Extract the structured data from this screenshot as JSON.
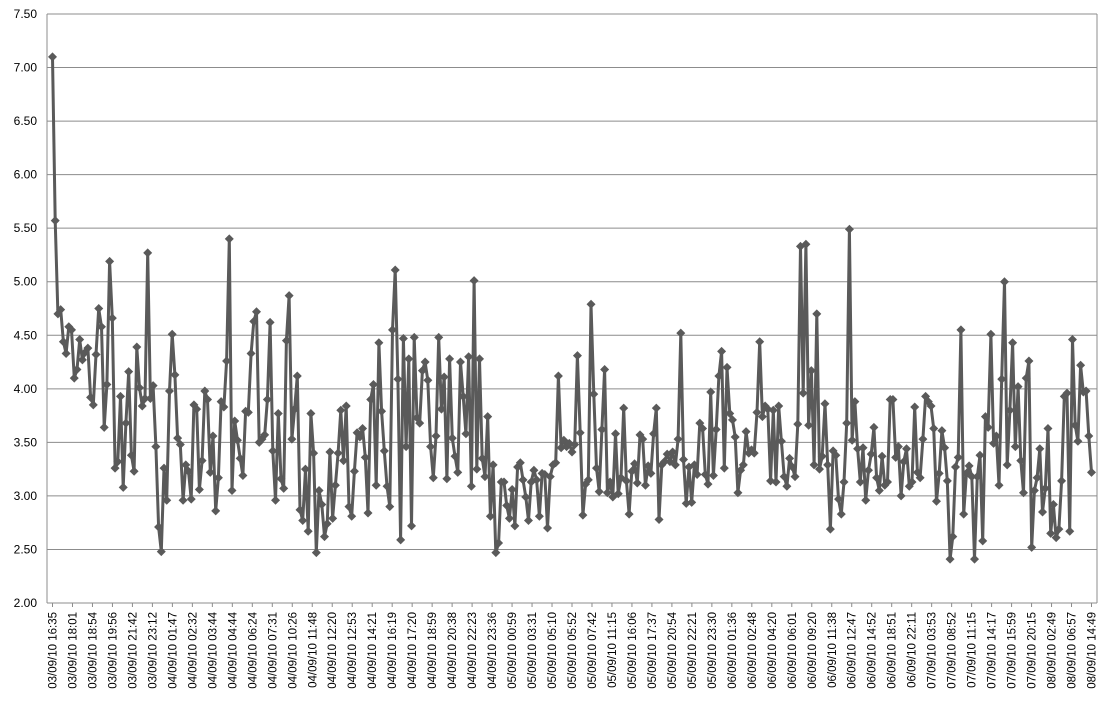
{
  "chart_data": {
    "type": "line",
    "title": "",
    "xlabel": "",
    "ylabel": "",
    "ylim": [
      2.0,
      7.5
    ],
    "y_ticks": [
      "2.00",
      "2.50",
      "3.00",
      "3.50",
      "4.00",
      "4.50",
      "5.00",
      "5.50",
      "6.00",
      "6.50",
      "7.00",
      "7.50"
    ],
    "grid": "horizontal",
    "legend": "none",
    "marker": "diamond",
    "series_color": "#5a5a5a",
    "gridline_color": "#8c8c8c",
    "x_tick_labels": [
      "03/09/10  16:35",
      "03/09/10  18:01",
      "03/09/10  18:54",
      "03/09/10  19:56",
      "03/09/10  21:42",
      "03/09/10  23:12",
      "04/09/10  01:47",
      "04/09/10  02:32",
      "04/09/10  03:44",
      "04/09/10  04:44",
      "04/09/10  06:24",
      "04/09/10  07:31",
      "04/09/10  10:26",
      "04/09/10  11:48",
      "04/09/10  12:20",
      "04/09/10  12:53",
      "04/09/10  14:21",
      "04/09/10  16:19",
      "04/09/10  17:20",
      "04/09/10  18:59",
      "04/09/10  20:38",
      "04/09/10  22:23",
      "04/09/10  23:36",
      "05/09/10  00:59",
      "05/09/10  03:31",
      "05/09/10  05:10",
      "05/09/10  05:52",
      "05/09/10  07:42",
      "05/09/10  11:15",
      "05/09/10  16:06",
      "05/09/10  17:37",
      "05/09/10  20:54",
      "05/09/10  22:21",
      "05/09/10  23:30",
      "06/09/10  01:36",
      "06/09/10  02:48",
      "06/09/10  04:20",
      "06/09/10  06:01",
      "06/09/10  09:20",
      "06/09/10  11:38",
      "06/09/10  12:47",
      "06/09/10  14:52",
      "06/09/10  18:51",
      "06/09/10  22:11",
      "07/09/10  03:53",
      "07/09/10  08:52",
      "07/09/10  11:15",
      "07/09/10  14:17",
      "07/09/10  15:59",
      "07/09/10  20:15",
      "08/09/10  02:49",
      "08/09/10  06:57",
      "08/09/10  14:49"
    ],
    "values": [
      7.1,
      5.57,
      4.7,
      4.74,
      4.44,
      4.33,
      4.58,
      4.55,
      4.1,
      4.18,
      4.46,
      4.27,
      4.34,
      4.38,
      3.92,
      3.85,
      4.32,
      4.75,
      4.58,
      3.64,
      4.04,
      5.19,
      4.66,
      3.26,
      3.32,
      3.93,
      3.08,
      3.68,
      4.16,
      3.38,
      3.23,
      4.39,
      4.01,
      3.84,
      3.91,
      5.27,
      3.91,
      4.03,
      3.46,
      2.71,
      2.48,
      3.26,
      2.96,
      3.98,
      4.51,
      4.13,
      3.54,
      3.48,
      2.96,
      3.29,
      3.23,
      2.97,
      3.85,
      3.81,
      3.06,
      3.33,
      3.98,
      3.9,
      3.22,
      3.56,
      2.86,
      3.17,
      3.88,
      3.83,
      4.26,
      5.4,
      3.05,
      3.7,
      3.52,
      3.35,
      3.19,
      3.79,
      3.78,
      4.33,
      4.63,
      4.72,
      3.5,
      3.53,
      3.57,
      3.9,
      4.62,
      3.42,
      2.96,
      3.77,
      3.16,
      3.07,
      4.45,
      4.87,
      3.53,
      3.81,
      4.12,
      2.87,
      2.77,
      3.25,
      2.67,
      3.77,
      3.4,
      2.47,
      3.05,
      2.92,
      2.62,
      2.74,
      3.41,
      2.79,
      3.1,
      3.4,
      3.8,
      3.33,
      3.84,
      2.9,
      2.81,
      3.23,
      3.59,
      3.55,
      3.63,
      3.36,
      2.84,
      3.9,
      4.04,
      3.1,
      4.43,
      3.79,
      3.42,
      3.09,
      2.9,
      4.55,
      5.11,
      4.09,
      2.59,
      4.47,
      3.46,
      4.28,
      2.72,
      4.48,
      3.73,
      3.68,
      4.17,
      4.25,
      4.08,
      3.46,
      3.17,
      3.56,
      4.48,
      3.81,
      4.11,
      3.16,
      4.28,
      3.54,
      3.37,
      3.22,
      4.25,
      3.93,
      3.58,
      4.3,
      3.09,
      5.01,
      3.25,
      4.28,
      3.35,
      3.18,
      3.74,
      2.81,
      3.29,
      2.47,
      2.56,
      3.13,
      3.13,
      2.91,
      2.79,
      3.06,
      2.72,
      3.27,
      3.31,
      3.15,
      2.99,
      2.77,
      3.13,
      3.24,
      3.15,
      2.81,
      3.21,
      3.2,
      2.7,
      3.18,
      3.29,
      3.31,
      4.12,
      3.45,
      3.52,
      3.46,
      3.49,
      3.41,
      3.48,
      4.31,
      3.59,
      2.82,
      3.11,
      3.15,
      4.79,
      3.95,
      3.26,
      3.04,
      3.62,
      4.18,
      3.03,
      3.13,
      2.99,
      3.58,
      3.02,
      3.17,
      3.82,
      3.14,
      2.83,
      3.23,
      3.3,
      3.12,
      3.57,
      3.53,
      3.1,
      3.28,
      3.21,
      3.58,
      3.82,
      2.78,
      3.29,
      3.32,
      3.39,
      3.32,
      3.41,
      3.29,
      3.53,
      4.52,
      3.34,
      2.93,
      3.27,
      2.94,
      3.29,
      3.2,
      3.68,
      3.63,
      3.2,
      3.11,
      3.97,
      3.19,
      3.62,
      4.12,
      4.35,
      3.26,
      4.2,
      3.77,
      3.71,
      3.55,
      3.03,
      3.24,
      3.29,
      3.6,
      3.4,
      3.43,
      3.4,
      3.78,
      4.44,
      3.74,
      3.84,
      3.81,
      3.14,
      3.8,
      3.13,
      3.84,
      3.51,
      3.18,
      3.09,
      3.35,
      3.27,
      3.18,
      3.67,
      5.33,
      3.96,
      5.35,
      3.66,
      4.17,
      3.29,
      4.7,
      3.25,
      3.37,
      3.86,
      3.29,
      2.69,
      3.42,
      3.38,
      2.97,
      2.83,
      3.13,
      3.68,
      5.49,
      3.52,
      3.88,
      3.44,
      3.13,
      3.45,
      2.96,
      3.24,
      3.39,
      3.64,
      3.17,
      3.05,
      3.37,
      3.1,
      3.13,
      3.9,
      3.9,
      3.36,
      3.46,
      3.0,
      3.32,
      3.44,
      3.09,
      3.13,
      3.83,
      3.22,
      3.17,
      3.53,
      3.93,
      3.88,
      3.84,
      3.63,
      2.95,
      3.21,
      3.61,
      3.45,
      3.14,
      2.41,
      2.62,
      3.27,
      3.36,
      4.55,
      2.83,
      3.21,
      3.28,
      3.18,
      2.41,
      3.18,
      3.38,
      2.58,
      3.74,
      3.64,
      4.51,
      3.49,
      3.56,
      3.1,
      4.09,
      5.0,
      3.29,
      3.8,
      4.43,
      3.46,
      4.02,
      3.33,
      3.03,
      4.1,
      4.26,
      2.52,
      3.05,
      3.17,
      3.44,
      2.85,
      3.07,
      3.63,
      2.65,
      2.92,
      2.61,
      2.69,
      3.14,
      3.93,
      3.96,
      2.67,
      4.46,
      3.66,
      3.51,
      4.22,
      3.97,
      3.98,
      3.56,
      3.22
    ]
  }
}
